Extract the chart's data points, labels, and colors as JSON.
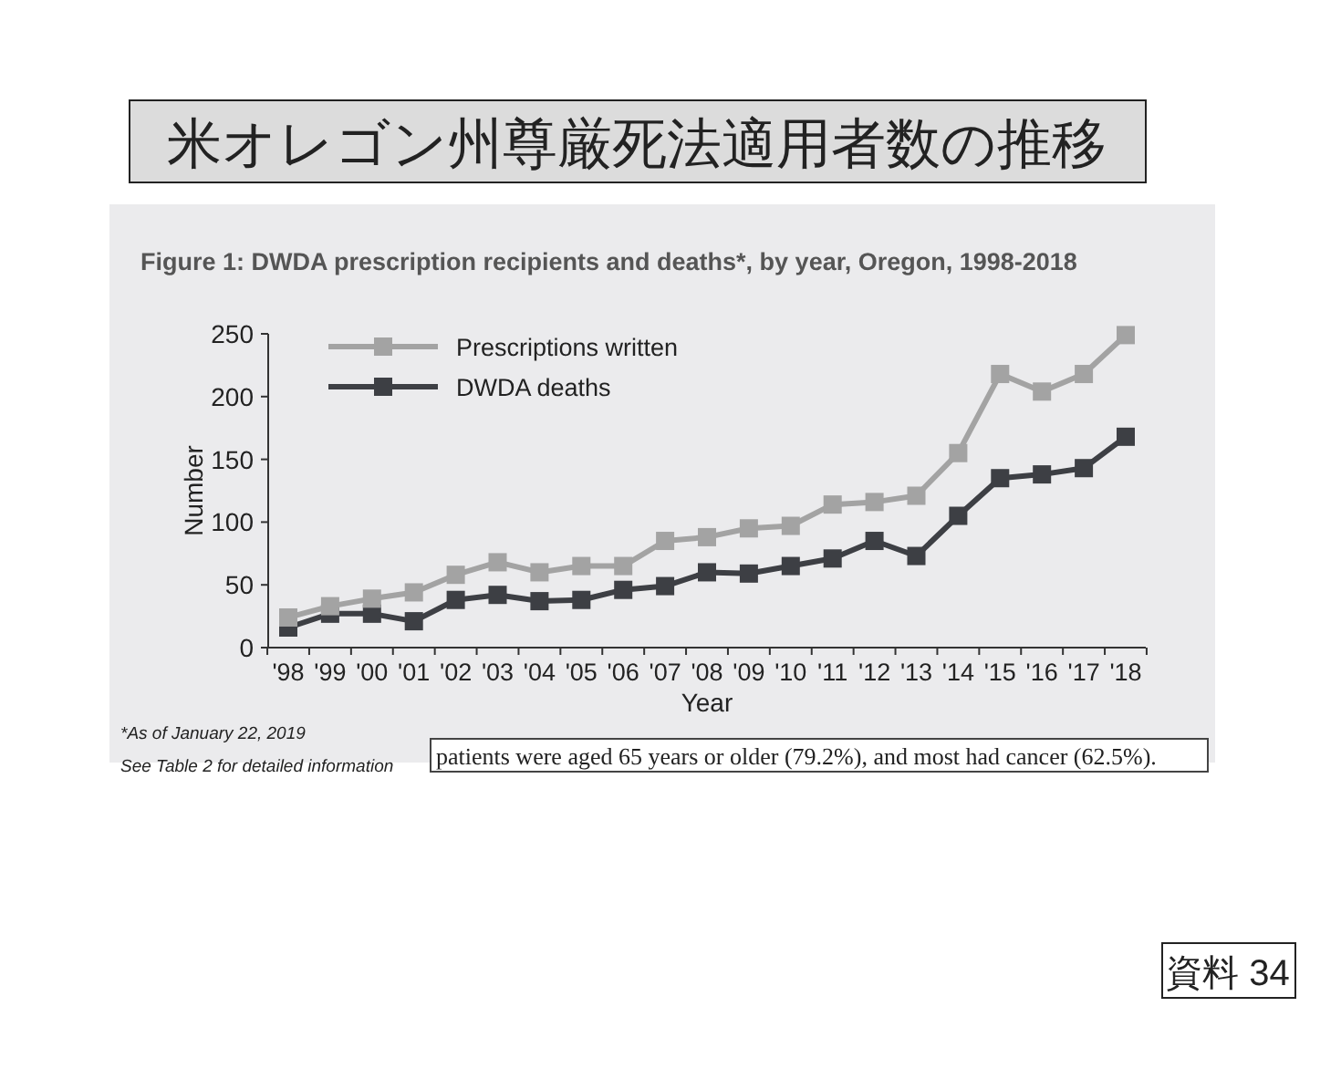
{
  "chart_data": {
    "type": "line",
    "title": "米オレゴン州尊厳死法適用者数の推移",
    "subtitle": "Figure 1: DWDA prescription recipients and deaths*, by year, Oregon, 1998-2018",
    "xlabel": "Year",
    "ylabel": "Number",
    "categories": [
      "'98",
      "'99",
      "'00",
      "'01",
      "'02",
      "'03",
      "'04",
      "'05",
      "'06",
      "'07",
      "'08",
      "'09",
      "'10",
      "'11",
      "'12",
      "'13",
      "'14",
      "'15",
      "'16",
      "'17",
      "'18"
    ],
    "series": [
      {
        "name": "Prescriptions written",
        "color": "#a3a3a3",
        "values": [
          24,
          33,
          39,
          44,
          58,
          68,
          60,
          65,
          65,
          85,
          88,
          95,
          97,
          114,
          116,
          121,
          155,
          218,
          204,
          218,
          249
        ]
      },
      {
        "name": "DWDA deaths",
        "color": "#3d3f44",
        "values": [
          16,
          27,
          27,
          21,
          38,
          42,
          37,
          38,
          46,
          49,
          60,
          59,
          65,
          71,
          85,
          73,
          105,
          135,
          138,
          143,
          168
        ]
      }
    ],
    "ylim": [
      0,
      250
    ],
    "yticks": [
      0,
      50,
      100,
      150,
      200,
      250
    ],
    "marker": "square",
    "line_style": "solid",
    "grid": false,
    "legend": "top left",
    "annotations": [
      "*As of January 22, 2019",
      "See Table 2 for detailed information",
      "patients were aged 65 years or older (79.2%), and most had cancer (62.5%).",
      "資料 34"
    ]
  }
}
